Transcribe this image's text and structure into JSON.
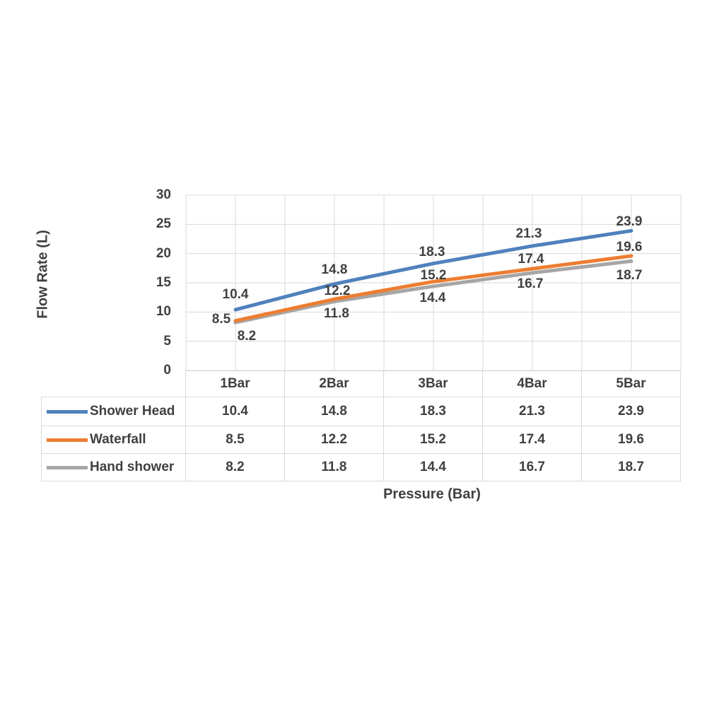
{
  "chart_data": {
    "type": "line",
    "categories": [
      "1Bar",
      "2Bar",
      "3Bar",
      "4Bar",
      "5Bar"
    ],
    "series": [
      {
        "name": "Shower Head",
        "color": "#4F81BD",
        "values": [
          10.4,
          14.8,
          18.3,
          21.3,
          23.9
        ]
      },
      {
        "name": "Waterfall",
        "color": "#ED7D31",
        "values": [
          8.5,
          12.2,
          15.2,
          17.4,
          19.6
        ]
      },
      {
        "name": "Hand shower",
        "color": "#A6A6A6",
        "values": [
          8.2,
          11.8,
          14.4,
          16.7,
          18.7
        ]
      }
    ],
    "xlabel": "Pressure (Bar)",
    "ylabel": "Flow Rate (L)",
    "ylim": [
      0,
      30
    ],
    "yticks": [
      30,
      25,
      20,
      15,
      10,
      5,
      0
    ],
    "grid": true,
    "data_labels": true,
    "legend_position": "data-table-left",
    "show_data_table": true,
    "colors": {
      "gridline": "#D9D9D9",
      "text": "#404040",
      "background": "#FFFFFF"
    }
  }
}
